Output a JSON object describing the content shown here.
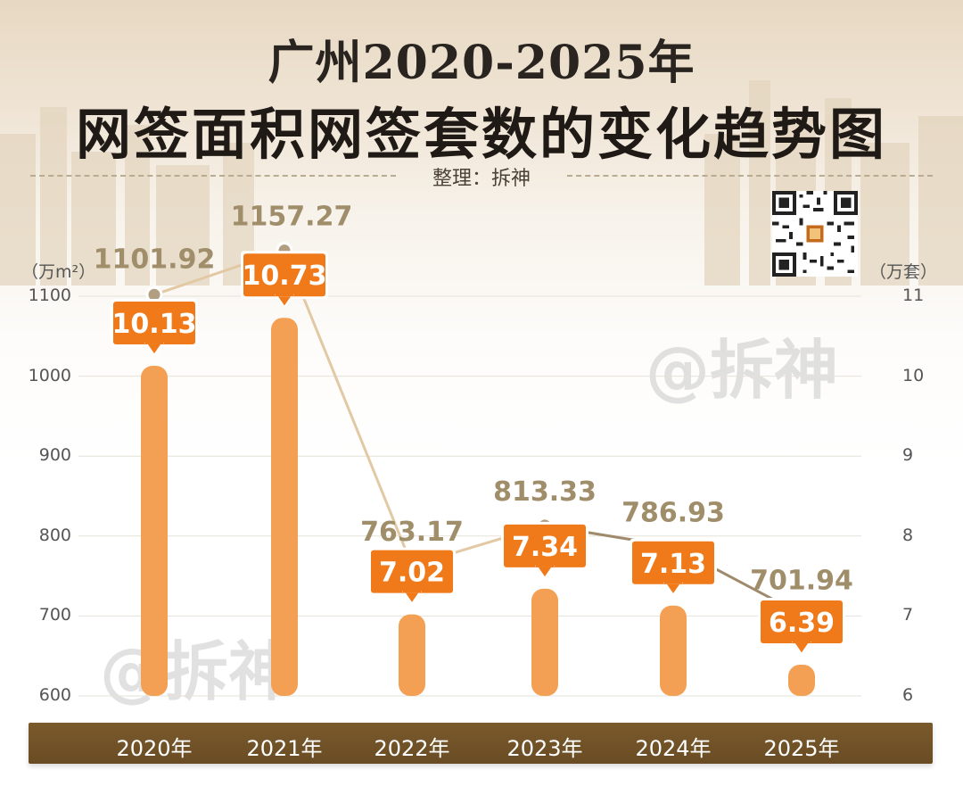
{
  "title_line1": "广州2020-2025年",
  "title_line2": "网签面积网签套数的变化趋势图",
  "subtitle": "整理：拆神",
  "watermark": "@拆神",
  "colors": {
    "bar": "#f4a054",
    "label_box": "#f07a1a",
    "line_segment_up": "#e2c9a4",
    "line_segment_down": "#a08a6c",
    "marker": "#b29e80",
    "area_text": "#a08e6b",
    "category_bar": "#6f5027"
  },
  "chart_data": {
    "type": "bar+line",
    "categories": [
      "2020年",
      "2021年",
      "2022年",
      "2023年",
      "2024年",
      "2025年"
    ],
    "left_axis": {
      "unit": "（万m²）",
      "ticks": [
        1100,
        1000,
        900,
        800,
        700,
        600
      ],
      "range": [
        600,
        1100
      ]
    },
    "right_axis": {
      "unit": "（万套）",
      "ticks": [
        11,
        10,
        9,
        8,
        7,
        6
      ],
      "range": [
        6,
        11
      ]
    },
    "series": [
      {
        "type": "line",
        "axis": "left",
        "values": [
          1101.92,
          1157.27,
          763.17,
          813.33,
          786.93,
          701.94
        ],
        "labels": [
          "1101.92",
          "1157.27",
          "763.17",
          "813.33",
          "786.93",
          "701.94"
        ]
      },
      {
        "type": "bar",
        "axis": "right",
        "values": [
          10.13,
          10.73,
          7.02,
          7.34,
          7.13,
          6.39
        ],
        "labels": [
          "10.13",
          "10.73",
          "7.02",
          "7.34",
          "7.13",
          "6.39"
        ]
      }
    ],
    "grid": true
  }
}
